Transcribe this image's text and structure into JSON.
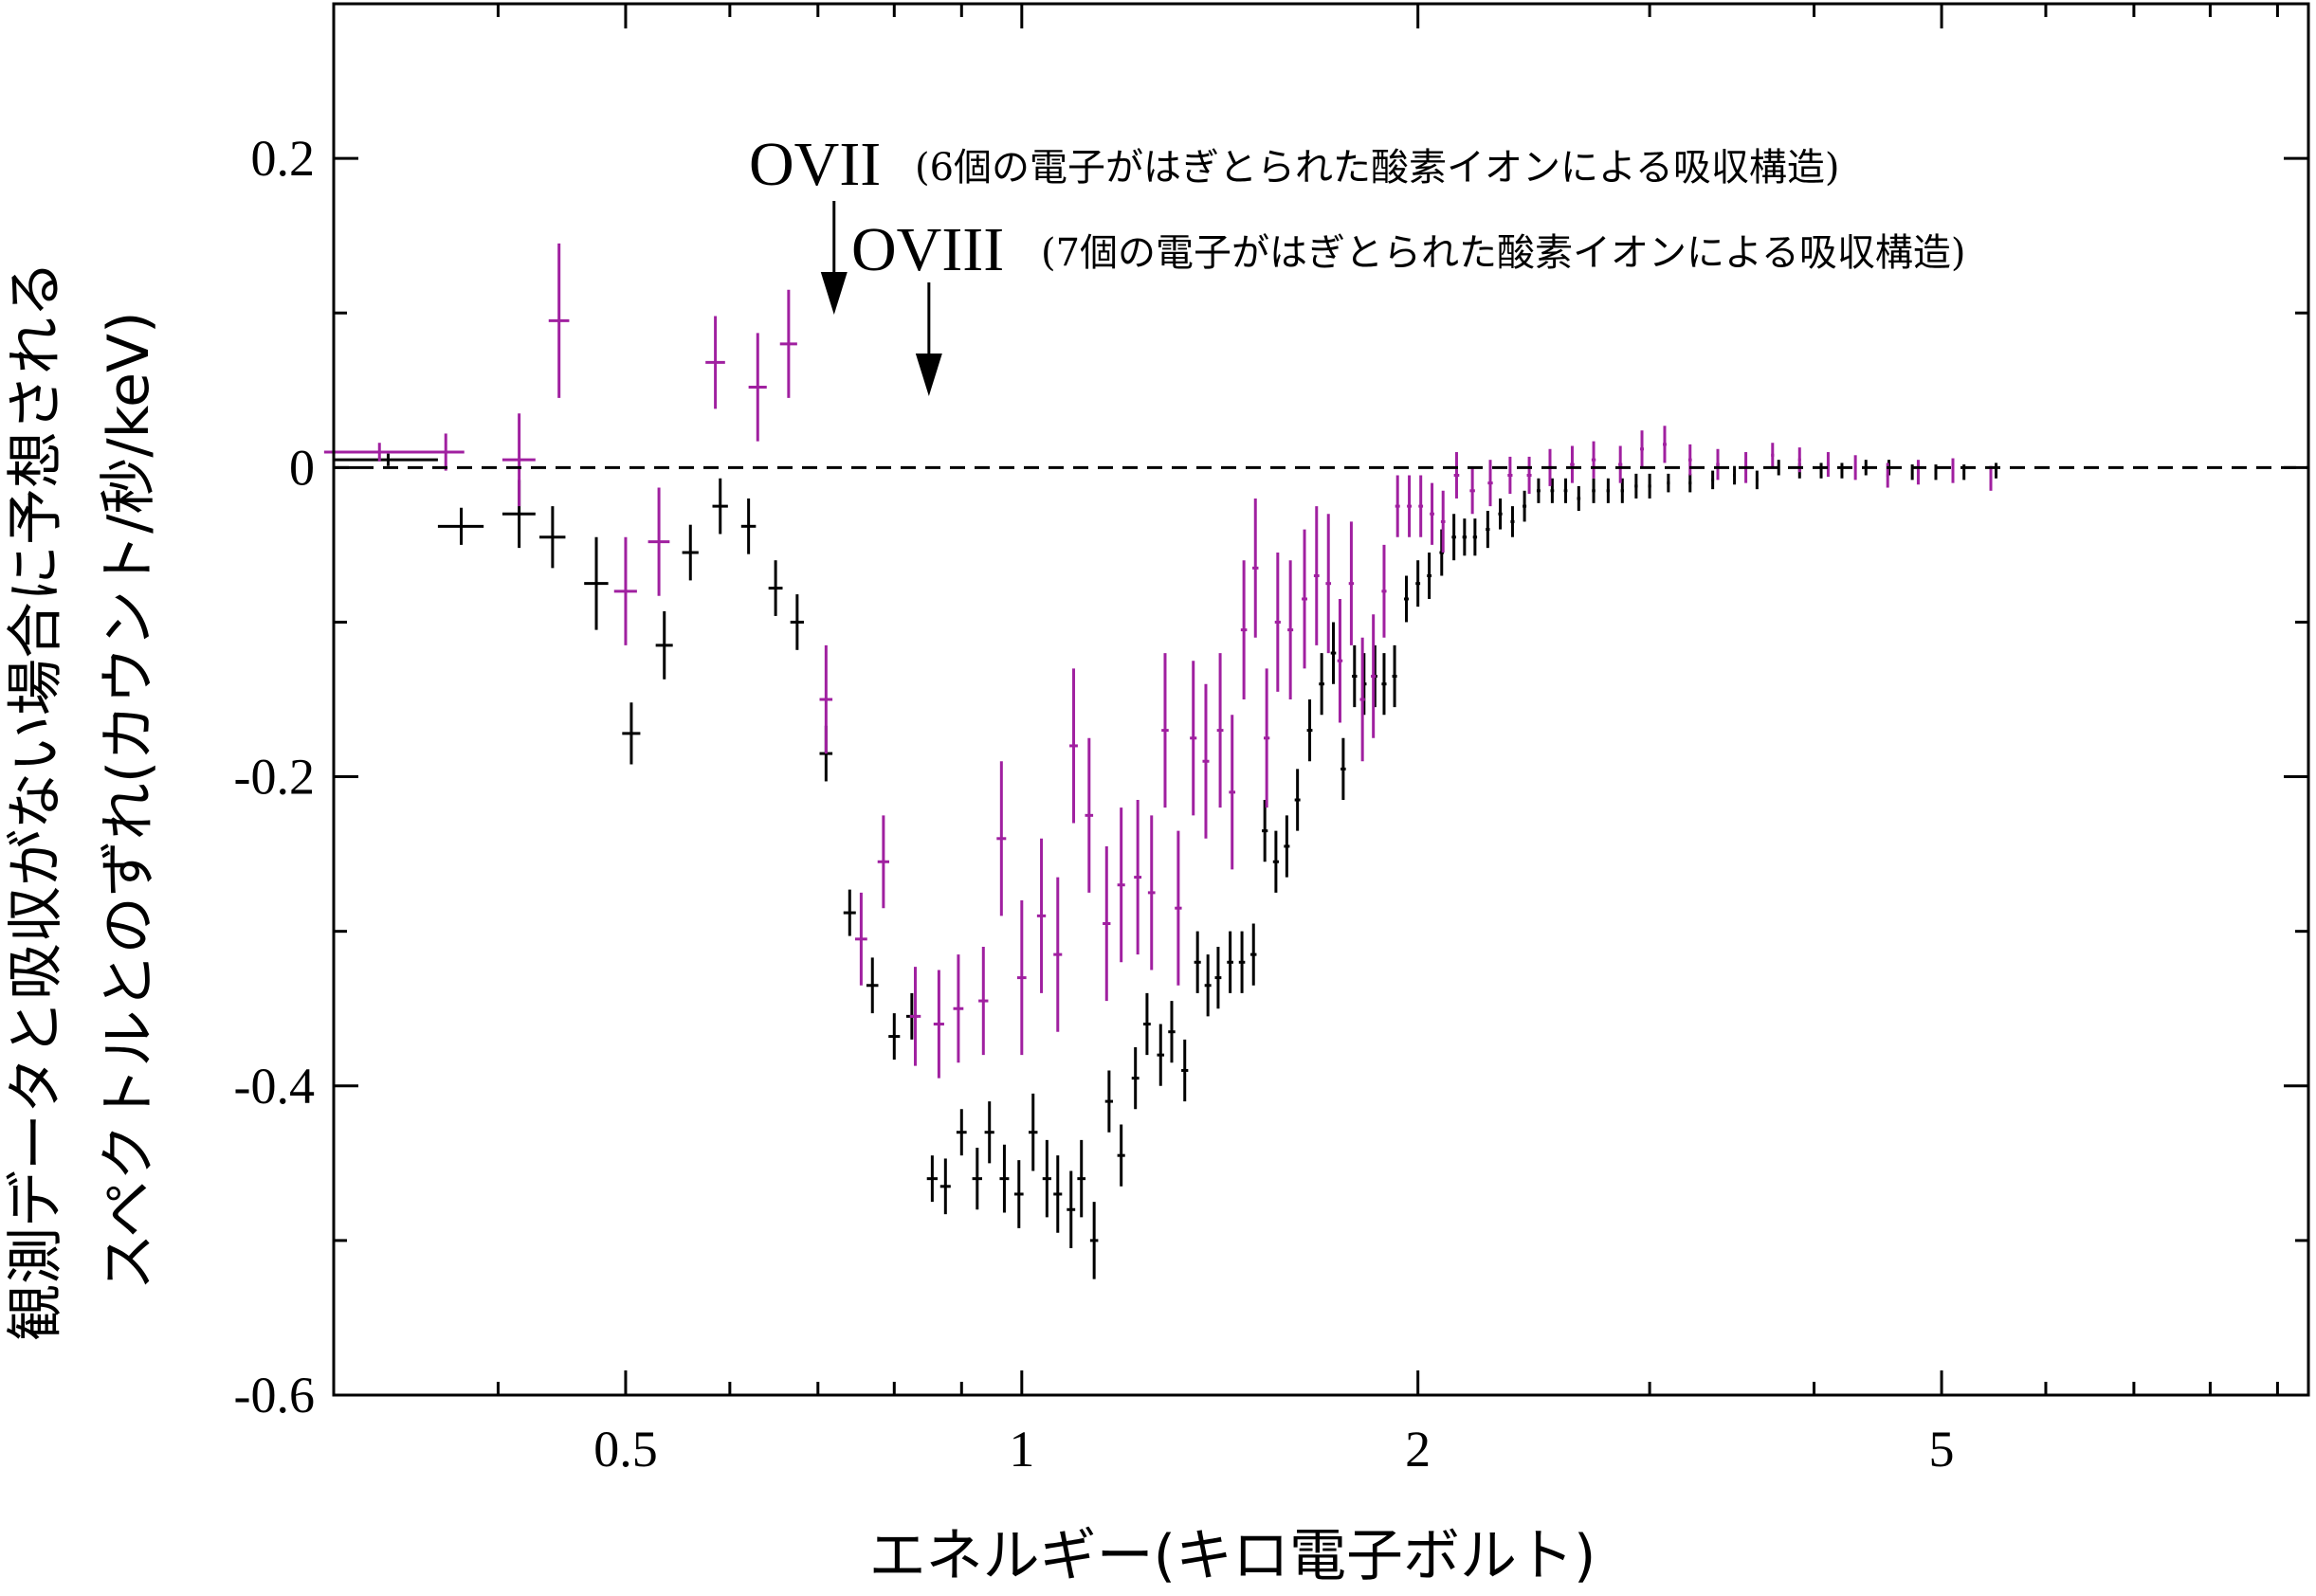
{
  "chart_data": {
    "type": "scatter",
    "xscale": "log",
    "xlim": [
      0.3,
      9.5
    ],
    "ylim": [
      -0.6,
      0.3
    ],
    "xlabel": "エネルギー(キロ電子ボルト)",
    "ylabel_lines": [
      "観測データと吸収がない場合に予想される",
      "スペクトルとのずれ(カウント/秒/keV)"
    ],
    "xticks": [
      0.5,
      1,
      2,
      5
    ],
    "xtick_labels": [
      "0.5",
      "1",
      "2",
      "5"
    ],
    "yticks": [
      0.2,
      0,
      -0.2,
      -0.4,
      -0.6
    ],
    "ytick_labels": [
      "0.2",
      "0",
      "-0.2",
      "-0.4",
      "-0.6"
    ],
    "reference_line": 0,
    "annotations": [
      {
        "label": "OVII",
        "note": "(6個の電子がはぎとられた酸素イオンによる吸収構造)",
        "x": 0.72
      },
      {
        "label": "OVIII",
        "note": "(7個の電子がはぎとられた酸素イオンによる吸収構造)",
        "x": 0.85
      }
    ],
    "series": [
      {
        "color": "#000000",
        "points": [
          [
            0.33,
            0.005,
            0.03,
            0.004
          ],
          [
            0.375,
            -0.038,
            0.015,
            0.012
          ],
          [
            0.415,
            -0.03,
            0.012,
            0.022
          ],
          [
            0.44,
            -0.045,
            0.01,
            0.02
          ],
          [
            0.475,
            -0.075,
            0.01,
            0.03
          ],
          [
            0.505,
            -0.172,
            0.008,
            0.02
          ],
          [
            0.535,
            -0.115,
            0.008,
            0.022
          ],
          [
            0.56,
            -0.055,
            0.008,
            0.018
          ],
          [
            0.59,
            -0.025,
            0.008,
            0.018
          ],
          [
            0.62,
            -0.038,
            0.008,
            0.018
          ],
          [
            0.65,
            -0.078,
            0.008,
            0.018
          ],
          [
            0.675,
            -0.1,
            0.008,
            0.018
          ],
          [
            0.71,
            -0.185,
            0.008,
            0.018
          ],
          [
            0.74,
            -0.288,
            0.008,
            0.015
          ],
          [
            0.77,
            -0.335,
            0.008,
            0.018
          ],
          [
            0.8,
            -0.368,
            0.008,
            0.015
          ],
          [
            0.825,
            -0.355,
            0.008,
            0.015
          ],
          [
            0.855,
            -0.46,
            0.008,
            0.015
          ],
          [
            0.875,
            -0.465,
            0.008,
            0.018
          ],
          [
            0.9,
            -0.43,
            0.008,
            0.015
          ],
          [
            0.925,
            -0.46,
            0.008,
            0.02
          ],
          [
            0.945,
            -0.43,
            0.008,
            0.02
          ],
          [
            0.97,
            -0.46,
            0.008,
            0.022
          ],
          [
            0.995,
            -0.47,
            0.008,
            0.022
          ],
          [
            1.02,
            -0.43,
            0.008,
            0.025
          ],
          [
            1.045,
            -0.46,
            0.008,
            0.025
          ],
          [
            1.065,
            -0.47,
            0.008,
            0.025
          ],
          [
            1.09,
            -0.48,
            0.008,
            0.025
          ],
          [
            1.11,
            -0.46,
            0.008,
            0.025
          ],
          [
            1.135,
            -0.5,
            0.008,
            0.025
          ],
          [
            1.165,
            -0.41,
            0.008,
            0.02
          ],
          [
            1.19,
            -0.445,
            0.008,
            0.02
          ],
          [
            1.22,
            -0.395,
            0.008,
            0.02
          ],
          [
            1.245,
            -0.36,
            0.008,
            0.02
          ],
          [
            1.275,
            -0.38,
            0.008,
            0.02
          ],
          [
            1.3,
            -0.365,
            0.008,
            0.02
          ],
          [
            1.33,
            -0.39,
            0.008,
            0.02
          ],
          [
            1.36,
            -0.32,
            0.008,
            0.02
          ],
          [
            1.385,
            -0.335,
            0.008,
            0.02
          ],
          [
            1.41,
            -0.33,
            0.008,
            0.02
          ],
          [
            1.44,
            -0.32,
            0.008,
            0.02
          ],
          [
            1.47,
            -0.32,
            0.008,
            0.02
          ],
          [
            1.5,
            -0.315,
            0.008,
            0.02
          ],
          [
            1.53,
            -0.235,
            0.008,
            0.02
          ],
          [
            1.56,
            -0.255,
            0.008,
            0.02
          ],
          [
            1.59,
            -0.245,
            0.008,
            0.02
          ],
          [
            1.62,
            -0.215,
            0.008,
            0.02
          ],
          [
            1.655,
            -0.17,
            0.008,
            0.02
          ],
          [
            1.69,
            -0.14,
            0.008,
            0.02
          ],
          [
            1.725,
            -0.12,
            0.008,
            0.02
          ],
          [
            1.755,
            -0.195,
            0.008,
            0.02
          ],
          [
            1.79,
            -0.135,
            0.008,
            0.02
          ],
          [
            1.82,
            -0.14,
            0.008,
            0.02
          ],
          [
            1.855,
            -0.135,
            0.008,
            0.02
          ],
          [
            1.885,
            -0.14,
            0.008,
            0.02
          ],
          [
            1.92,
            -0.135,
            0.008,
            0.02
          ],
          [
            1.96,
            -0.085,
            0.008,
            0.015
          ],
          [
            2.0,
            -0.075,
            0.008,
            0.015
          ],
          [
            2.04,
            -0.07,
            0.008,
            0.015
          ],
          [
            2.085,
            -0.055,
            0.008,
            0.015
          ],
          [
            2.13,
            -0.045,
            0.008,
            0.015
          ],
          [
            2.17,
            -0.045,
            0.008,
            0.012
          ],
          [
            2.21,
            -0.045,
            0.008,
            0.012
          ],
          [
            2.26,
            -0.04,
            0.008,
            0.012
          ],
          [
            2.31,
            -0.03,
            0.008,
            0.01
          ],
          [
            2.36,
            -0.035,
            0.008,
            0.01
          ],
          [
            2.41,
            -0.025,
            0.008,
            0.01
          ],
          [
            2.47,
            -0.015,
            0.008,
            0.008
          ],
          [
            2.53,
            -0.015,
            0.008,
            0.008
          ],
          [
            2.59,
            -0.015,
            0.008,
            0.008
          ],
          [
            2.65,
            -0.02,
            0.008,
            0.008
          ],
          [
            2.72,
            -0.015,
            0.008,
            0.008
          ],
          [
            2.79,
            -0.015,
            0.008,
            0.008
          ],
          [
            2.86,
            -0.015,
            0.008,
            0.008
          ],
          [
            2.93,
            -0.012,
            0.008,
            0.008
          ],
          [
            3.0,
            -0.012,
            0.008,
            0.008
          ],
          [
            3.1,
            -0.01,
            0.008,
            0.006
          ],
          [
            3.22,
            -0.01,
            0.008,
            0.006
          ],
          [
            3.35,
            -0.008,
            0.008,
            0.006
          ],
          [
            3.48,
            -0.005,
            0.008,
            0.006
          ],
          [
            3.62,
            -0.008,
            0.008,
            0.006
          ],
          [
            3.76,
            0.0,
            0.008,
            0.005
          ],
          [
            3.9,
            -0.002,
            0.008,
            0.005
          ],
          [
            4.05,
            -0.002,
            0.008,
            0.005
          ],
          [
            4.2,
            -0.002,
            0.008,
            0.005
          ],
          [
            4.38,
            0.0,
            0.008,
            0.005
          ],
          [
            4.56,
            0.0,
            0.008,
            0.005
          ],
          [
            4.75,
            -0.003,
            0.008,
            0.005
          ],
          [
            4.95,
            -0.003,
            0.008,
            0.005
          ],
          [
            5.2,
            -0.003,
            0.008,
            0.005
          ],
          [
            5.5,
            -0.002,
            0.008,
            0.005
          ]
        ]
      },
      {
        "color": "#a020a0",
        "points": [
          [
            0.325,
            0.01,
            0.03,
            0.006
          ],
          [
            0.365,
            0.01,
            0.012,
            0.012
          ],
          [
            0.415,
            0.005,
            0.012,
            0.03
          ],
          [
            0.445,
            0.095,
            0.008,
            0.05
          ],
          [
            0.5,
            -0.08,
            0.01,
            0.035
          ],
          [
            0.53,
            -0.048,
            0.01,
            0.035
          ],
          [
            0.585,
            0.068,
            0.01,
            0.03
          ],
          [
            0.63,
            0.052,
            0.01,
            0.035
          ],
          [
            0.665,
            0.08,
            0.01,
            0.035
          ],
          [
            0.71,
            -0.15,
            0.008,
            0.035
          ],
          [
            0.755,
            -0.305,
            0.008,
            0.03
          ],
          [
            0.785,
            -0.255,
            0.008,
            0.03
          ],
          [
            0.83,
            -0.355,
            0.008,
            0.032
          ],
          [
            0.865,
            -0.36,
            0.008,
            0.035
          ],
          [
            0.895,
            -0.35,
            0.008,
            0.035
          ],
          [
            0.935,
            -0.345,
            0.008,
            0.035
          ],
          [
            0.965,
            -0.24,
            0.008,
            0.05
          ],
          [
            1.0,
            -0.33,
            0.008,
            0.05
          ],
          [
            1.035,
            -0.29,
            0.008,
            0.05
          ],
          [
            1.065,
            -0.315,
            0.008,
            0.05
          ],
          [
            1.095,
            -0.18,
            0.008,
            0.05
          ],
          [
            1.125,
            -0.225,
            0.008,
            0.05
          ],
          [
            1.16,
            -0.295,
            0.008,
            0.05
          ],
          [
            1.19,
            -0.27,
            0.008,
            0.05
          ],
          [
            1.225,
            -0.265,
            0.008,
            0.05
          ],
          [
            1.255,
            -0.275,
            0.008,
            0.05
          ],
          [
            1.285,
            -0.17,
            0.008,
            0.05
          ],
          [
            1.315,
            -0.285,
            0.008,
            0.05
          ],
          [
            1.35,
            -0.175,
            0.008,
            0.05
          ],
          [
            1.38,
            -0.19,
            0.008,
            0.05
          ],
          [
            1.415,
            -0.17,
            0.008,
            0.05
          ],
          [
            1.445,
            -0.21,
            0.008,
            0.05
          ],
          [
            1.475,
            -0.105,
            0.008,
            0.045
          ],
          [
            1.505,
            -0.065,
            0.008,
            0.045
          ],
          [
            1.535,
            -0.175,
            0.008,
            0.045
          ],
          [
            1.565,
            -0.1,
            0.008,
            0.045
          ],
          [
            1.6,
            -0.105,
            0.008,
            0.045
          ],
          [
            1.64,
            -0.085,
            0.008,
            0.045
          ],
          [
            1.675,
            -0.07,
            0.008,
            0.045
          ],
          [
            1.71,
            -0.075,
            0.008,
            0.045
          ],
          [
            1.745,
            -0.125,
            0.008,
            0.04
          ],
          [
            1.78,
            -0.075,
            0.008,
            0.04
          ],
          [
            1.815,
            -0.15,
            0.008,
            0.04
          ],
          [
            1.85,
            -0.135,
            0.008,
            0.04
          ],
          [
            1.885,
            -0.08,
            0.008,
            0.03
          ],
          [
            1.93,
            -0.025,
            0.008,
            0.02
          ],
          [
            1.97,
            -0.025,
            0.008,
            0.02
          ],
          [
            2.01,
            -0.025,
            0.008,
            0.02
          ],
          [
            2.05,
            -0.03,
            0.008,
            0.02
          ],
          [
            2.09,
            -0.035,
            0.008,
            0.02
          ],
          [
            2.14,
            -0.005,
            0.01,
            0.015
          ],
          [
            2.2,
            -0.015,
            0.01,
            0.015
          ],
          [
            2.27,
            -0.01,
            0.01,
            0.015
          ],
          [
            2.35,
            -0.005,
            0.01,
            0.012
          ],
          [
            2.43,
            -0.005,
            0.01,
            0.012
          ],
          [
            2.52,
            0.0,
            0.01,
            0.012
          ],
          [
            2.62,
            0.002,
            0.01,
            0.012
          ],
          [
            2.72,
            0.005,
            0.01,
            0.012
          ],
          [
            2.85,
            0.002,
            0.01,
            0.012
          ],
          [
            2.96,
            0.012,
            0.01,
            0.012
          ],
          [
            3.08,
            0.015,
            0.01,
            0.012
          ],
          [
            3.22,
            0.005,
            0.01,
            0.01
          ],
          [
            3.38,
            0.002,
            0.01,
            0.01
          ],
          [
            3.55,
            0.0,
            0.01,
            0.01
          ],
          [
            3.72,
            0.008,
            0.01,
            0.008
          ],
          [
            3.9,
            0.005,
            0.01,
            0.008
          ],
          [
            4.1,
            0.002,
            0.01,
            0.008
          ],
          [
            4.3,
            0.0,
            0.01,
            0.008
          ],
          [
            4.55,
            -0.005,
            0.01,
            0.008
          ],
          [
            4.8,
            -0.003,
            0.01,
            0.008
          ],
          [
            5.1,
            -0.002,
            0.01,
            0.008
          ],
          [
            5.45,
            -0.007,
            0.01,
            0.008
          ]
        ]
      }
    ]
  }
}
